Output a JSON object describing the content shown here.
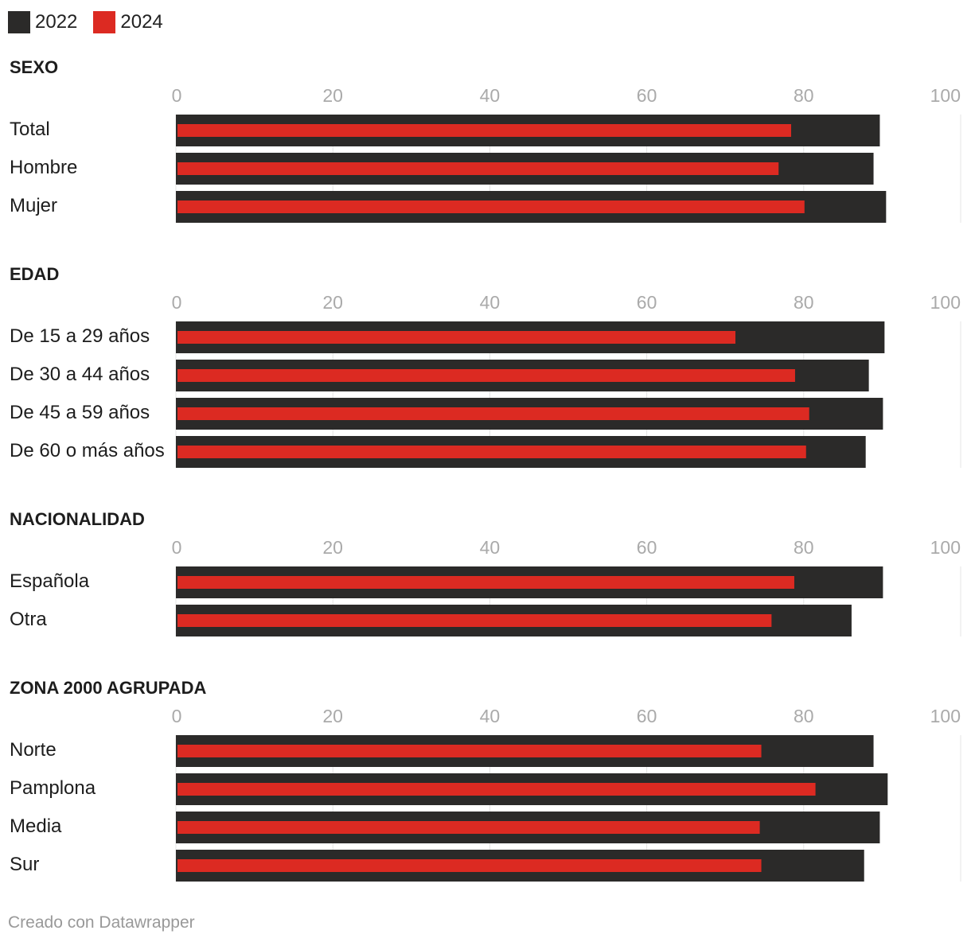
{
  "legend": [
    {
      "name": "2022",
      "color": "#2b2a29"
    },
    {
      "name": "2024",
      "color": "#dc2a22"
    }
  ],
  "footer": "Creado con Datawrapper",
  "chart_data": {
    "type": "bar",
    "orientation": "horizontal",
    "style": "overlapping-bars",
    "xlim": [
      0,
      100
    ],
    "ticks": [
      0,
      20,
      40,
      60,
      80,
      100
    ],
    "grid": true,
    "legend_position": "top-left",
    "series_colors": {
      "2022": "#2b2a29",
      "2024": "#dc2a22"
    },
    "groups": [
      {
        "title": "SEXO",
        "categories": [
          "Total",
          "Hombre",
          "Mujer"
        ],
        "series": [
          {
            "name": "2022",
            "values": [
              89.7,
              88.9,
              90.5
            ]
          },
          {
            "name": "2024",
            "values": [
              78.4,
              76.8,
              80.1
            ]
          }
        ]
      },
      {
        "title": "EDAD",
        "categories": [
          "De 15 a 29 años",
          "De 30 a 44 años",
          "De 45 a 59 años",
          "De 60 o más años"
        ],
        "series": [
          {
            "name": "2022",
            "values": [
              90.3,
              88.3,
              90.1,
              87.9
            ]
          },
          {
            "name": "2024",
            "values": [
              71.3,
              78.9,
              80.7,
              80.3
            ]
          }
        ]
      },
      {
        "title": "NACIONALIDAD",
        "categories": [
          "Española",
          "Otra"
        ],
        "series": [
          {
            "name": "2022",
            "values": [
              90.1,
              86.1
            ]
          },
          {
            "name": "2024",
            "values": [
              78.8,
              75.9
            ]
          }
        ]
      },
      {
        "title": "ZONA 2000 AGRUPADA",
        "categories": [
          "Norte",
          "Pamplona",
          "Media",
          "Sur"
        ],
        "series": [
          {
            "name": "2022",
            "values": [
              88.9,
              90.7,
              89.7,
              87.7
            ]
          },
          {
            "name": "2024",
            "values": [
              74.6,
              81.5,
              74.4,
              74.6
            ]
          }
        ]
      }
    ]
  }
}
